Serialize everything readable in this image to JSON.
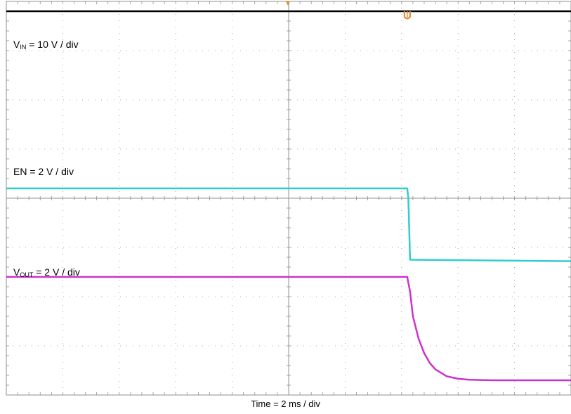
{
  "chart_data": {
    "type": "line",
    "title": "",
    "xlabel": "Time = 2 ms / div",
    "ylabel": "",
    "grid": true,
    "x_divisions": 10,
    "y_divisions": 8,
    "x_unit": "div",
    "y_unit": "div",
    "xlim": [
      0,
      10
    ],
    "ylim": [
      0,
      8
    ],
    "trigger_position_div": 2,
    "labels": [
      {
        "base": "V",
        "sub": "IN",
        "rest": " = 10 V / div"
      },
      {
        "base": "EN = 2 V / div",
        "sub": "",
        "rest": ""
      },
      {
        "base": "V",
        "sub": "OUT",
        "rest": " = 2 V / div"
      }
    ],
    "series": [
      {
        "color": "#000000",
        "x": [
          0,
          10
        ],
        "y": [
          7.8,
          7.8
        ]
      },
      {
        "color": "#33CCCC",
        "x": [
          0,
          7.1,
          7.12,
          7.15,
          10
        ],
        "y": [
          4.2,
          4.2,
          4.0,
          2.75,
          2.72
        ]
      },
      {
        "color": "#CC33CC",
        "x": [
          0,
          7.1,
          7.15,
          7.2,
          7.3,
          7.4,
          7.5,
          7.6,
          7.8,
          8.0,
          8.2,
          8.6,
          10
        ],
        "y": [
          2.4,
          2.4,
          2.1,
          1.6,
          1.15,
          0.85,
          0.65,
          0.52,
          0.38,
          0.33,
          0.31,
          0.3,
          0.3
        ]
      }
    ]
  },
  "colors": {
    "grid": "#909090",
    "trigger_marker": "#E08A2C"
  }
}
